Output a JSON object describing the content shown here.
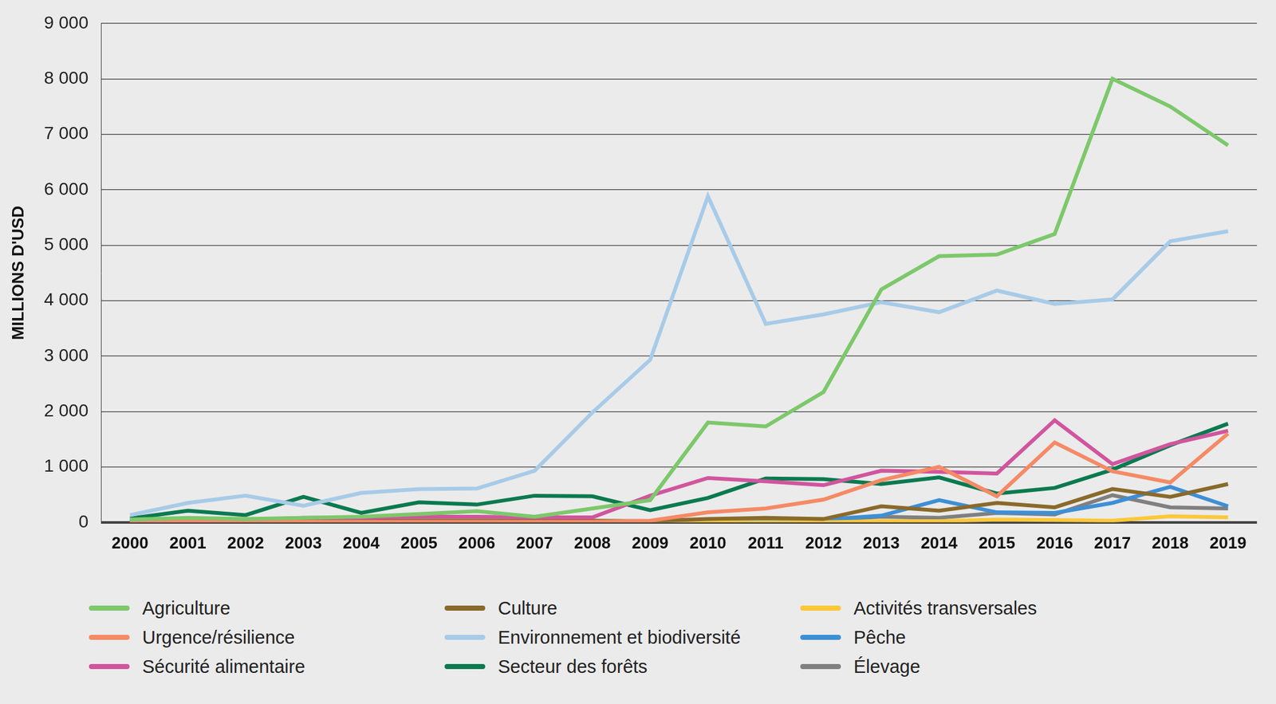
{
  "chart_data": {
    "type": "line",
    "y_label": "MILLIONS D'USD",
    "categories": [
      "2000",
      "2001",
      "2002",
      "2003",
      "2004",
      "2005",
      "2006",
      "2007",
      "2008",
      "2009",
      "2010",
      "2011",
      "2012",
      "2013",
      "2014",
      "2015",
      "2016",
      "2017",
      "2018",
      "2019"
    ],
    "series": [
      {
        "name": "Agriculture",
        "color": "#7dc86b",
        "values": [
          50,
          80,
          60,
          80,
          100,
          150,
          200,
          100,
          250,
          400,
          1800,
          1730,
          2350,
          4200,
          4800,
          4830,
          5200,
          8000,
          7500,
          6800
        ]
      },
      {
        "name": "Urgence/résilience",
        "color": "#f58a66",
        "values": [
          10,
          10,
          10,
          10,
          10,
          10,
          10,
          10,
          10,
          30,
          180,
          250,
          410,
          760,
          1000,
          470,
          1440,
          920,
          720,
          1600
        ]
      },
      {
        "name": "Sécurité alimentaire",
        "color": "#d1559e",
        "values": [
          0,
          20,
          40,
          80,
          80,
          100,
          100,
          90,
          90,
          480,
          800,
          740,
          670,
          930,
          910,
          880,
          1840,
          1050,
          1410,
          1650
        ]
      },
      {
        "name": "Culture",
        "color": "#8a6a2a",
        "values": [
          30,
          30,
          30,
          30,
          30,
          30,
          30,
          30,
          30,
          20,
          60,
          80,
          60,
          290,
          210,
          350,
          270,
          600,
          460,
          690
        ]
      },
      {
        "name": "Environnement et biodiversité",
        "color": "#a7cbe8",
        "values": [
          130,
          350,
          480,
          300,
          530,
          600,
          610,
          930,
          1980,
          2930,
          5880,
          3580,
          3750,
          3970,
          3790,
          4180,
          3940,
          4020,
          5070,
          5250
        ]
      },
      {
        "name": "Secteur des forêts",
        "color": "#0a7a50",
        "values": [
          70,
          210,
          130,
          460,
          170,
          360,
          320,
          480,
          470,
          220,
          440,
          790,
          780,
          690,
          810,
          520,
          620,
          950,
          1390,
          1780
        ]
      },
      {
        "name": "Activités transversales",
        "color": "#fcc838",
        "values": [
          0,
          0,
          0,
          0,
          0,
          0,
          0,
          0,
          0,
          0,
          0,
          0,
          0,
          20,
          20,
          50,
          40,
          30,
          110,
          90
        ]
      },
      {
        "name": "Pêche",
        "color": "#3d8fd6",
        "values": [
          10,
          10,
          10,
          10,
          10,
          10,
          10,
          10,
          10,
          10,
          50,
          50,
          50,
          120,
          400,
          180,
          170,
          350,
          640,
          290
        ]
      },
      {
        "name": "Élevage",
        "color": "#808080",
        "values": [
          10,
          10,
          10,
          10,
          10,
          10,
          10,
          10,
          10,
          10,
          40,
          50,
          40,
          100,
          80,
          170,
          140,
          490,
          270,
          250
        ]
      }
    ],
    "ylim": [
      0,
      9000
    ],
    "yticks": [
      0,
      {
        "value": 1000,
        "label": "1 000"
      },
      {
        "value": 2000,
        "label": "2 000"
      },
      {
        "value": 3000,
        "label": "3 000"
      },
      {
        "value": 4000,
        "label": "4 000"
      },
      {
        "value": 5000,
        "label": "5 000"
      },
      {
        "value": 6000,
        "label": "6 000"
      },
      {
        "value": 7000,
        "label": "7 000"
      },
      {
        "value": 8000,
        "label": "8 000"
      },
      {
        "value": 9000,
        "label": "9 000"
      }
    ],
    "grid": true,
    "legend": "bottom"
  }
}
